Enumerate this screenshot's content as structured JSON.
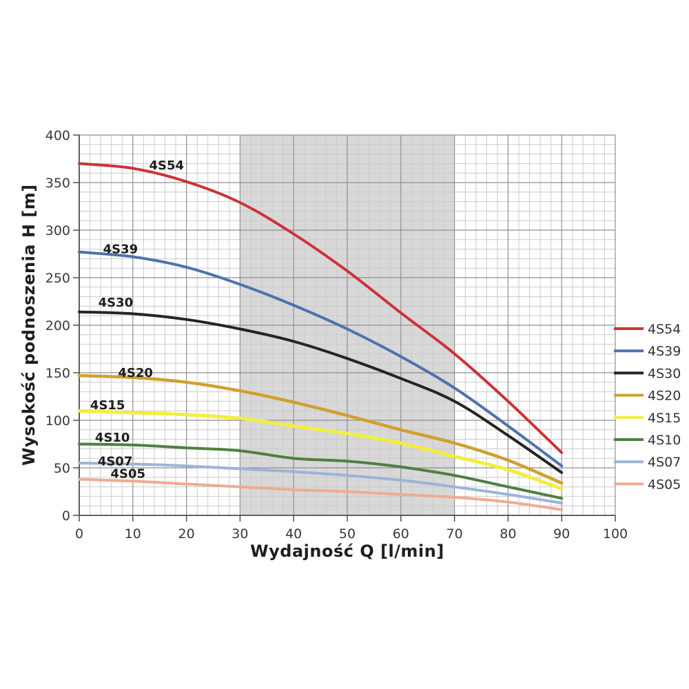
{
  "chart_data": {
    "type": "line",
    "title": "",
    "xlabel": "Wydajność Q [l/min]",
    "ylabel": "Wysokość podnoszenia H [m]",
    "xlim": [
      0,
      100
    ],
    "ylim": [
      0,
      400
    ],
    "x_tick_step": 10,
    "y_tick_step": 50,
    "x_minor_step": 2,
    "y_minor_step": 10,
    "x_tick_labels": [
      "0",
      "10",
      "20",
      "30",
      "40",
      "50",
      "60",
      "70",
      "80",
      "90",
      "100"
    ],
    "y_tick_labels": [
      "0",
      "50",
      "100",
      "150",
      "200",
      "250",
      "300",
      "350",
      "400"
    ],
    "grid": true,
    "legend_position": "right",
    "shaded_band": {
      "x_from": 30,
      "x_to": 70,
      "color": "#d8d8d8"
    },
    "x": [
      0,
      10,
      20,
      30,
      40,
      50,
      60,
      70,
      80,
      90
    ],
    "series": [
      {
        "name": "4S54",
        "color": "#cb3339",
        "width": 4,
        "values": [
          370,
          365,
          351,
          329,
          296,
          257,
          213,
          170,
          120,
          66
        ],
        "label_x": 16.3,
        "label_y": 368
      },
      {
        "name": "4S39",
        "color": "#4d72ad",
        "width": 4,
        "values": [
          277,
          272,
          261,
          243,
          221,
          196,
          167,
          134,
          94,
          52
        ],
        "label_x": 7.7,
        "label_y": 280
      },
      {
        "name": "4S30",
        "color": "#242424",
        "width": 4,
        "values": [
          214,
          212,
          206,
          196,
          183,
          165,
          144,
          120,
          84,
          45
        ],
        "label_x": 6.8,
        "label_y": 224
      },
      {
        "name": "4S20",
        "color": "#cfa02e",
        "width": 4.5,
        "values": [
          147,
          145,
          140,
          131,
          119,
          105,
          90,
          76,
          58,
          34
        ],
        "label_x": 10.5,
        "label_y": 150
      },
      {
        "name": "4S15",
        "color": "#f2ee3e",
        "width": 5,
        "values": [
          110,
          108,
          106,
          102,
          94,
          86,
          76,
          62,
          48,
          28
        ],
        "label_x": 5.3,
        "label_y": 116
      },
      {
        "name": "4S10",
        "color": "#4e7f42",
        "width": 4,
        "values": [
          75,
          74,
          71,
          68,
          60,
          57,
          51,
          42,
          30,
          18
        ],
        "label_x": 6.2,
        "label_y": 82
      },
      {
        "name": "4S07",
        "color": "#9db3d8",
        "width": 4,
        "values": [
          55,
          54,
          52,
          49,
          46,
          42,
          37,
          30,
          22,
          13
        ],
        "label_x": 6.7,
        "label_y": 57
      },
      {
        "name": "4S05",
        "color": "#efab92",
        "width": 4,
        "values": [
          38,
          36,
          33,
          30,
          27,
          25,
          22,
          19,
          14,
          6
        ],
        "label_x": 9.1,
        "label_y": 44
      }
    ],
    "legend": [
      "4S54",
      "4S39",
      "4S30",
      "4S20",
      "4S15",
      "4S10",
      "4S07",
      "4S05"
    ]
  },
  "style": {
    "band_color": "#d8d8d8",
    "minor_grid_color": "#cbcbcb",
    "major_grid_color": "#8f8f8f",
    "axis_color": "#4f4f4f",
    "tick_label_color": "#383838",
    "curve_label_color": "#1d1d1d",
    "legend_text_color": "#333333"
  }
}
